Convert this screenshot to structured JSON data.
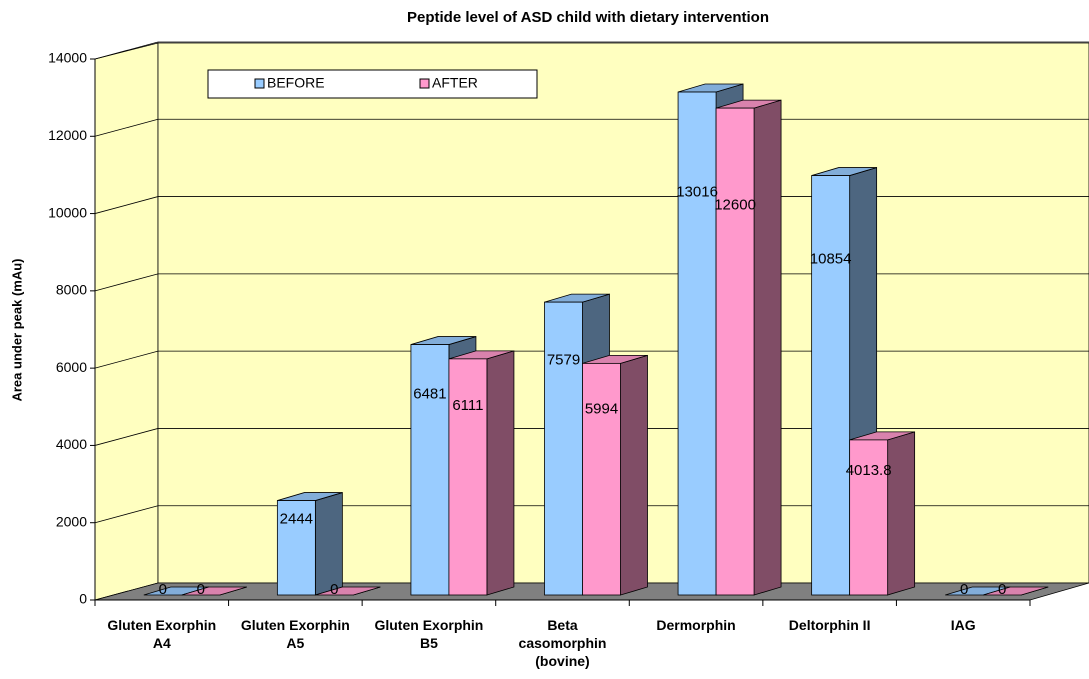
{
  "chart_data": {
    "type": "bar3d",
    "title": "Peptide level of ASD child with dietary intervention",
    "ylabel": "Area under peak (mAu)",
    "categories": [
      "Gluten Exorphin A4",
      "Gluten Exorphin A5",
      "Gluten Exorphin B5",
      "Beta casomorphin (bovine)",
      "Dermorphin",
      "Deltorphin II",
      "IAG"
    ],
    "series": [
      {
        "name": "BEFORE",
        "color": "#99ccff",
        "values": [
          0,
          2444,
          6481,
          7579,
          13016,
          10854,
          0
        ]
      },
      {
        "name": "AFTER",
        "color": "#ff99cc",
        "values": [
          0,
          0,
          6111,
          5994,
          12600,
          4013.8,
          0
        ]
      }
    ],
    "ylim": [
      0,
      14000
    ],
    "yticks": [
      0,
      2000,
      4000,
      6000,
      8000,
      10000,
      12000,
      14000
    ],
    "grid": true,
    "legend": "top"
  }
}
